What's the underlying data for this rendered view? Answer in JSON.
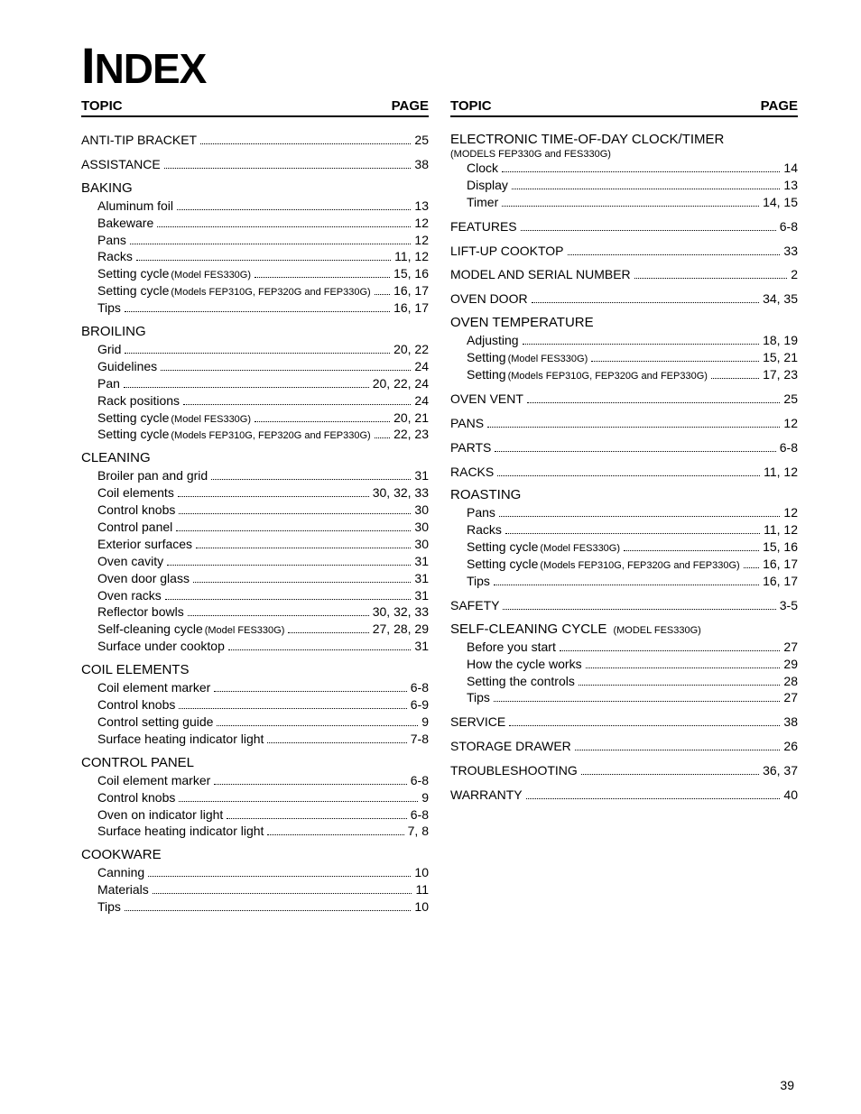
{
  "title_parts": [
    "I",
    "NDEX"
  ],
  "header": {
    "topic": "TOPIC",
    "page": "PAGE"
  },
  "page_number": "39",
  "left": [
    {
      "type": "entry",
      "label": "ANTI-TIP BRACKET",
      "page": "25"
    },
    {
      "type": "gap"
    },
    {
      "type": "entry",
      "label": "ASSISTANCE",
      "page": "38"
    },
    {
      "type": "gap"
    },
    {
      "type": "head",
      "label": "BAKING"
    },
    {
      "type": "sub",
      "label": "Aluminum foil",
      "page": "13"
    },
    {
      "type": "sub",
      "label": "Bakeware",
      "page": "12"
    },
    {
      "type": "sub",
      "label": "Pans",
      "page": "12"
    },
    {
      "type": "sub",
      "label": "Racks",
      "page": "11, 12"
    },
    {
      "type": "sub",
      "label": "Setting cycle",
      "note": "(Model FES330G)",
      "page": "15, 16"
    },
    {
      "type": "sub",
      "label": "Setting cycle",
      "note": "(Models FEP310G, FEP320G and FEP330G)",
      "page": "16, 17",
      "tight": true
    },
    {
      "type": "sub",
      "label": "Tips",
      "page": "16, 17"
    },
    {
      "type": "gap"
    },
    {
      "type": "head",
      "label": "BROILING"
    },
    {
      "type": "sub",
      "label": "Grid",
      "page": "20, 22"
    },
    {
      "type": "sub",
      "label": "Guidelines",
      "page": "24"
    },
    {
      "type": "sub",
      "label": "Pan",
      "page": "20, 22, 24"
    },
    {
      "type": "sub",
      "label": "Rack positions",
      "page": "24"
    },
    {
      "type": "sub",
      "label": "Setting cycle",
      "note": "(Model FES330G)",
      "page": "20, 21"
    },
    {
      "type": "sub",
      "label": "Setting cycle",
      "note": "(Models FEP310G, FEP320G and FEP330G)",
      "page": "22, 23",
      "tight": true
    },
    {
      "type": "gap"
    },
    {
      "type": "head",
      "label": "CLEANING"
    },
    {
      "type": "sub",
      "label": "Broiler pan and grid",
      "page": "31"
    },
    {
      "type": "sub",
      "label": "Coil elements",
      "page": "30, 32, 33"
    },
    {
      "type": "sub",
      "label": "Control knobs",
      "page": "30"
    },
    {
      "type": "sub",
      "label": "Control panel",
      "page": "30"
    },
    {
      "type": "sub",
      "label": "Exterior surfaces",
      "page": "30"
    },
    {
      "type": "sub",
      "label": "Oven cavity",
      "page": "31"
    },
    {
      "type": "sub",
      "label": "Oven door glass",
      "page": "31"
    },
    {
      "type": "sub",
      "label": "Oven racks",
      "page": "31"
    },
    {
      "type": "sub",
      "label": "Reflector bowls",
      "page": "30, 32, 33"
    },
    {
      "type": "sub",
      "label": "Self-cleaning cycle",
      "note": "(Model FES330G)",
      "page": "27, 28, 29"
    },
    {
      "type": "sub",
      "label": "Surface under cooktop",
      "page": "31"
    },
    {
      "type": "gap"
    },
    {
      "type": "head",
      "label": "COIL ELEMENTS"
    },
    {
      "type": "sub",
      "label": "Coil element marker",
      "page": "6-8"
    },
    {
      "type": "sub",
      "label": "Control knobs",
      "page": "6-9"
    },
    {
      "type": "sub",
      "label": "Control setting guide",
      "page": "9"
    },
    {
      "type": "sub",
      "label": "Surface heating indicator light",
      "page": "7-8"
    },
    {
      "type": "gap"
    },
    {
      "type": "head",
      "label": "CONTROL PANEL"
    },
    {
      "type": "sub",
      "label": "Coil element marker",
      "page": "6-8"
    },
    {
      "type": "sub",
      "label": "Control knobs",
      "page": "9"
    },
    {
      "type": "sub",
      "label": "Oven on indicator light",
      "page": "6-8"
    },
    {
      "type": "sub",
      "label": "Surface heating indicator light",
      "page": "7, 8"
    },
    {
      "type": "gap"
    },
    {
      "type": "head",
      "label": "COOKWARE"
    },
    {
      "type": "sub",
      "label": "Canning",
      "page": "10"
    },
    {
      "type": "sub",
      "label": "Materials",
      "page": "11"
    },
    {
      "type": "sub",
      "label": "Tips",
      "page": "10"
    }
  ],
  "right": [
    {
      "type": "head",
      "label": "ELECTRONIC TIME-OF-DAY CLOCK/TIMER"
    },
    {
      "type": "headnote",
      "label": "(MODELS FEP330G and FES330G)"
    },
    {
      "type": "sub",
      "label": "Clock",
      "page": "14"
    },
    {
      "type": "sub",
      "label": "Display",
      "page": "13"
    },
    {
      "type": "sub",
      "label": "Timer",
      "page": "14, 15"
    },
    {
      "type": "gap"
    },
    {
      "type": "entry",
      "label": "FEATURES",
      "page": "6-8"
    },
    {
      "type": "gap"
    },
    {
      "type": "entry",
      "label": "LIFT-UP COOKTOP",
      "page": "33"
    },
    {
      "type": "gap"
    },
    {
      "type": "entry",
      "label": "MODEL AND SERIAL NUMBER",
      "page": "2"
    },
    {
      "type": "gap"
    },
    {
      "type": "entry",
      "label": "OVEN DOOR",
      "page": "34, 35"
    },
    {
      "type": "gap"
    },
    {
      "type": "head",
      "label": "OVEN TEMPERATURE"
    },
    {
      "type": "sub",
      "label": "Adjusting",
      "page": "18, 19"
    },
    {
      "type": "sub",
      "label": "Setting",
      "note": "(Model FES330G)",
      "page": "15, 21"
    },
    {
      "type": "sub",
      "label": "Setting",
      "note": "(Models FEP310G, FEP320G and FEP330G)",
      "page": "17, 23"
    },
    {
      "type": "gap"
    },
    {
      "type": "entry",
      "label": "OVEN VENT",
      "page": "25"
    },
    {
      "type": "gap"
    },
    {
      "type": "entry",
      "label": "PANS",
      "page": "12"
    },
    {
      "type": "gap"
    },
    {
      "type": "entry",
      "label": "PARTS",
      "page": "6-8"
    },
    {
      "type": "gap"
    },
    {
      "type": "entry",
      "label": "RACKS",
      "page": "11, 12"
    },
    {
      "type": "gap"
    },
    {
      "type": "head",
      "label": "ROASTING"
    },
    {
      "type": "sub",
      "label": "Pans",
      "page": "12"
    },
    {
      "type": "sub",
      "label": "Racks",
      "page": "11, 12"
    },
    {
      "type": "sub",
      "label": "Setting cycle",
      "note": "(Model FES330G)",
      "page": "15, 16"
    },
    {
      "type": "sub",
      "label": "Setting cycle",
      "note": "(Models FEP310G, FEP320G and FEP330G)",
      "page": "16, 17",
      "tight": true
    },
    {
      "type": "sub",
      "label": "Tips",
      "page": "16, 17"
    },
    {
      "type": "gap"
    },
    {
      "type": "entry",
      "label": "SAFETY",
      "page": "3-5"
    },
    {
      "type": "gap"
    },
    {
      "type": "head",
      "label": "SELF-CLEANING CYCLE",
      "note": "(MODEL FES330G)"
    },
    {
      "type": "sub",
      "label": "Before you start",
      "page": "27"
    },
    {
      "type": "sub",
      "label": "How the cycle works",
      "page": "29"
    },
    {
      "type": "sub",
      "label": "Setting the controls",
      "page": "28"
    },
    {
      "type": "sub",
      "label": "Tips",
      "page": "27"
    },
    {
      "type": "gap"
    },
    {
      "type": "entry",
      "label": "SERVICE",
      "page": "38"
    },
    {
      "type": "gap"
    },
    {
      "type": "entry",
      "label": "STORAGE DRAWER",
      "page": "26"
    },
    {
      "type": "gap"
    },
    {
      "type": "entry",
      "label": "TROUBLESHOOTING",
      "page": "36, 37"
    },
    {
      "type": "gap"
    },
    {
      "type": "entry",
      "label": "WARRANTY",
      "page": "40"
    }
  ]
}
